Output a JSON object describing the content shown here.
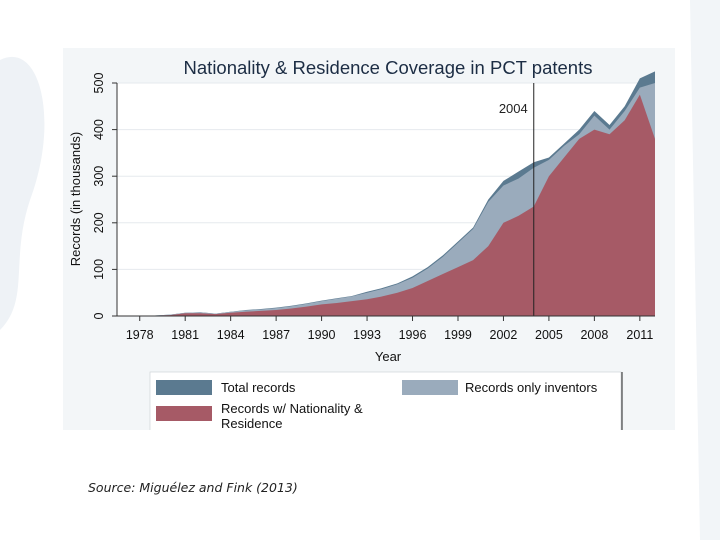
{
  "source_note": "Source: Miguélez and Fink (2013)",
  "chart_data": {
    "type": "area",
    "title": "Nationality & Residence Coverage in PCT patents",
    "xlabel": "Year",
    "ylabel": "Records (in thousands)",
    "xlim": [
      1976.5,
      2012
    ],
    "ylim": [
      0,
      500
    ],
    "xticks": [
      1978,
      1981,
      1984,
      1987,
      1990,
      1993,
      1996,
      1999,
      2002,
      2005,
      2008,
      2011
    ],
    "yticks": [
      0,
      100,
      200,
      300,
      400,
      500
    ],
    "annotation": {
      "label": "2004",
      "x": 2004
    },
    "x": [
      1978,
      1979,
      1980,
      1981,
      1982,
      1983,
      1984,
      1985,
      1986,
      1987,
      1988,
      1989,
      1990,
      1991,
      1992,
      1993,
      1994,
      1995,
      1996,
      1997,
      1998,
      1999,
      2000,
      2001,
      2002,
      2003,
      2004,
      2005,
      2006,
      2007,
      2008,
      2009,
      2010,
      2011,
      2012
    ],
    "series": [
      {
        "name": "Total records",
        "color": "#5b7a90",
        "values": [
          0.5,
          1,
          3,
          7,
          8,
          5,
          9,
          13,
          15,
          18,
          22,
          27,
          33,
          38,
          43,
          52,
          60,
          70,
          85,
          105,
          130,
          160,
          190,
          250,
          290,
          310,
          330,
          340,
          370,
          400,
          440,
          410,
          450,
          510,
          525
        ]
      },
      {
        "name": "Records only inventors",
        "color": "#9aabbc",
        "values": [
          0.5,
          1,
          3,
          7,
          8,
          5,
          9,
          12,
          14,
          17,
          21,
          26,
          32,
          37,
          42,
          50,
          58,
          68,
          82,
          102,
          127,
          157,
          187,
          245,
          280,
          295,
          318,
          335,
          365,
          390,
          430,
          400,
          440,
          490,
          500
        ]
      },
      {
        "name": "Records w/ Nationality & Residence",
        "color": "#a65a66",
        "values": [
          0.3,
          0.7,
          2,
          6,
          6,
          4,
          7,
          9,
          11,
          13,
          16,
          20,
          25,
          28,
          32,
          36,
          42,
          50,
          60,
          75,
          90,
          105,
          120,
          150,
          200,
          215,
          235,
          300,
          340,
          380,
          400,
          390,
          420,
          475,
          380
        ]
      }
    ],
    "legend": {
      "placement": "bottom",
      "entries": [
        "Total records",
        "Records only inventors",
        "Records w/ Nationality & Residence"
      ]
    }
  }
}
